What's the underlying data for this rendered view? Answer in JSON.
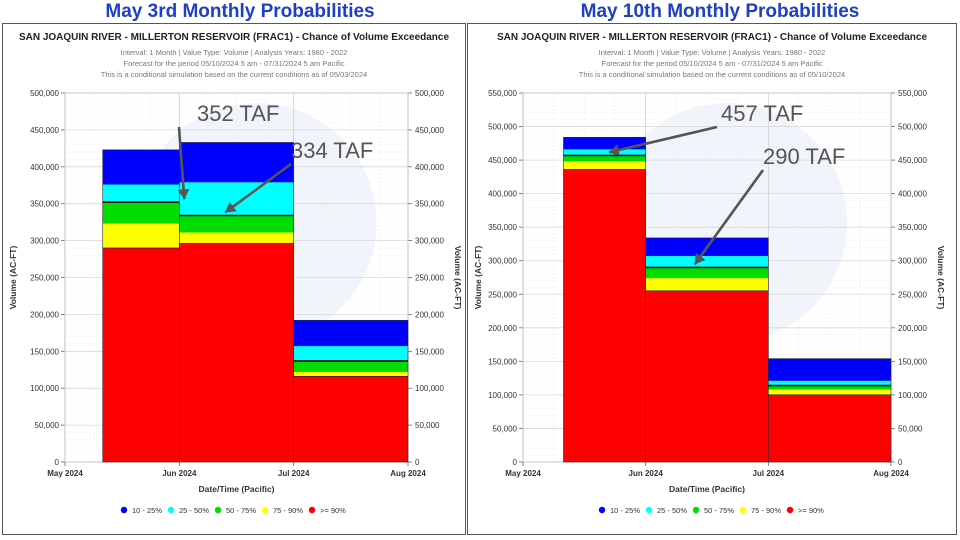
{
  "page_titles": [
    "May 3rd Monthly Probabilities",
    "May 10th Monthly Probabilities"
  ],
  "colors": {
    "10-25": "#0000ff",
    "25-50": "#00ffff",
    "50-75": "#00dd00",
    "75-90": "#ffff00",
    "ge90": "#ff0000"
  },
  "chart_data": [
    {
      "type": "bar",
      "title": "SAN JOAQUIN RIVER - MILLERTON RESERVOIR (FRAC1) - Chance of Volume Exceedance",
      "subtitle": [
        "Interval: 1 Month | Value Type: Volume | Analysis Years: 1980 - 2022",
        "Forecast for the period 05/10/2024 5 am - 07/31/2024 5 am Pacific",
        "This is a conditional simulation based on the current conditions as of 05/03/2024"
      ],
      "xlabel": "Date/Time (Pacific)",
      "ylabel": "Volume (AC-FT)",
      "ylim": [
        0,
        500000
      ],
      "yticks": [
        0,
        50000,
        100000,
        150000,
        200000,
        250000,
        300000,
        350000,
        400000,
        450000,
        500000
      ],
      "ytick_labels": [
        "0",
        "50,000",
        "100,000",
        "150,000",
        "200,000",
        "250,000",
        "300,000",
        "350,000",
        "400,000",
        "450,000",
        "500,000"
      ],
      "xtick_labels": [
        "May 2024",
        "Jun 2024",
        "Jul 2024",
        "Aug 2024"
      ],
      "grid": true,
      "legend": [
        "10 - 25%",
        "25 - 50%",
        "50 - 75%",
        "75 - 90%",
        ">= 90%"
      ],
      "legend_position": "bottom",
      "bars": [
        {
          "start": 0.33,
          "end": 1.0,
          "values": {
            "ge90": 290000,
            "75-90": 323000,
            "50-75": 352000,
            "25-50": 376000,
            "10-25": 423000
          }
        },
        {
          "start": 1.0,
          "end": 2.0,
          "values": {
            "ge90": 296000,
            "75-90": 311000,
            "50-75": 334000,
            "25-50": 379000,
            "10-25": 433000
          }
        },
        {
          "start": 2.0,
          "end": 3.0,
          "values": {
            "ge90": 116000,
            "75-90": 122000,
            "50-75": 137000,
            "25-50": 157000,
            "10-25": 192000
          }
        }
      ],
      "annotations": [
        {
          "text": "352 TAF",
          "month": 1.0,
          "value": 352000
        },
        {
          "text": "334 TAF",
          "month": 1.4,
          "value": 334000
        }
      ]
    },
    {
      "type": "bar",
      "title": "SAN JOAQUIN RIVER - MILLERTON RESERVOIR (FRAC1) - Chance of Volume Exceedance",
      "subtitle": [
        "Interval: 1 Month | Value Type: Volume | Analysis Years: 1980 - 2022",
        "Forecast for the period 05/10/2024 5 am - 07/31/2024 5 am Pacific",
        "This is a conditional simulation based on the current conditions as of 05/10/2024"
      ],
      "xlabel": "Date/Time (Pacific)",
      "ylabel": "Volume (AC-FT)",
      "ylim": [
        0,
        550000
      ],
      "yticks": [
        0,
        50000,
        100000,
        150000,
        200000,
        250000,
        300000,
        350000,
        400000,
        450000,
        500000,
        550000
      ],
      "ytick_labels": [
        "0",
        "50,000",
        "100,000",
        "150,000",
        "200,000",
        "250,000",
        "300,000",
        "350,000",
        "400,000",
        "450,000",
        "500,000",
        "550,000"
      ],
      "xtick_labels": [
        "May 2024",
        "Jun 2024",
        "Jul 2024",
        "Aug 2024"
      ],
      "grid": true,
      "legend": [
        "10 - 25%",
        "25 - 50%",
        "50 - 75%",
        "75 - 90%",
        ">= 90%"
      ],
      "legend_position": "bottom",
      "bars": [
        {
          "start": 0.33,
          "end": 1.0,
          "values": {
            "ge90": 436000,
            "75-90": 448000,
            "50-75": 457000,
            "25-50": 466000,
            "10-25": 484000
          }
        },
        {
          "start": 1.0,
          "end": 2.0,
          "values": {
            "ge90": 255000,
            "75-90": 274000,
            "50-75": 290000,
            "25-50": 307000,
            "10-25": 334000
          }
        },
        {
          "start": 2.0,
          "end": 3.0,
          "values": {
            "ge90": 100000,
            "75-90": 108000,
            "50-75": 114000,
            "25-50": 121000,
            "10-25": 154000
          }
        }
      ],
      "annotations": [
        {
          "text": "457 TAF",
          "month": 0.7,
          "value": 457000
        },
        {
          "text": "290 TAF",
          "month": 1.4,
          "value": 290000
        }
      ]
    }
  ]
}
